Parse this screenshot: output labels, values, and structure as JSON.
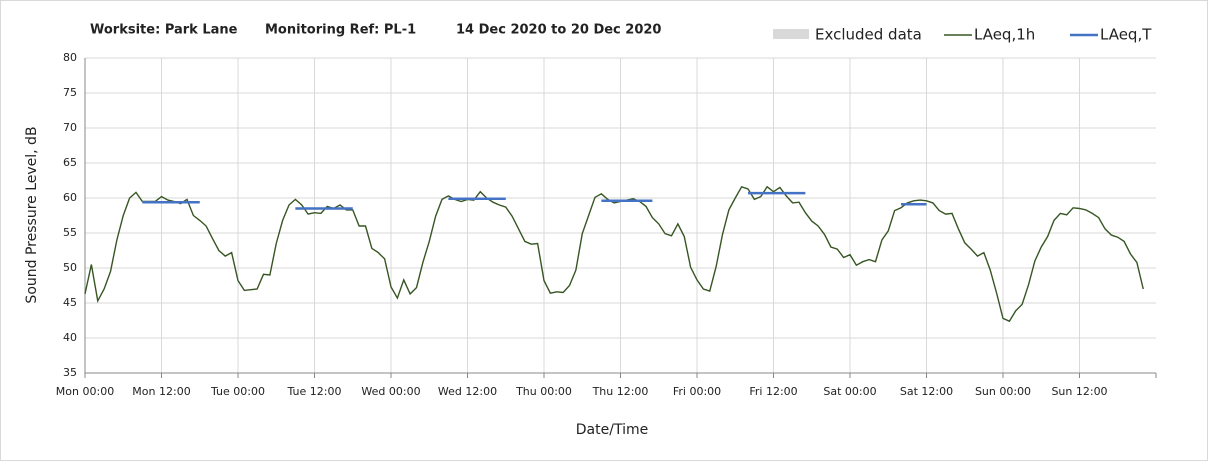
{
  "chart_data": {
    "type": "line",
    "title": [
      "Worksite: Park Lane",
      "Monitoring Ref: PL-1",
      "14 Dec 2020 to 20 Dec 2020"
    ],
    "x_label": "Date/Time",
    "y_label": "Sound Pressure Level, dB",
    "excluded": {
      "name": "Excluded data",
      "color": "#d9d9d9"
    },
    "x": [
      0,
      1,
      2,
      3,
      4,
      5,
      6,
      7,
      8,
      9,
      10,
      11,
      12,
      13,
      14,
      15,
      16,
      17,
      18,
      19,
      20,
      21,
      22,
      23,
      24,
      25,
      26,
      27,
      28,
      29,
      30,
      31,
      32,
      33,
      34,
      35,
      36,
      37,
      38,
      39,
      40,
      41,
      42,
      43,
      44,
      45,
      46,
      47,
      48,
      49,
      50,
      51,
      52,
      53,
      54,
      55,
      56,
      57,
      58,
      59,
      60,
      61,
      62,
      63,
      64,
      65,
      66,
      67,
      68,
      69,
      70,
      71,
      72,
      73,
      74,
      75,
      76,
      77,
      78,
      79,
      80,
      81,
      82,
      83,
      84,
      85,
      86,
      87,
      88,
      89,
      90,
      91,
      92,
      93,
      94,
      95,
      96,
      97,
      98,
      99,
      100,
      101,
      102,
      103,
      104,
      105,
      106,
      107,
      108,
      109,
      110,
      111,
      112,
      113,
      114,
      115,
      116,
      117,
      118,
      119,
      120,
      121,
      122,
      123,
      124,
      125,
      126,
      127,
      128,
      129,
      130,
      131,
      132,
      133,
      134,
      135,
      136,
      137,
      138,
      139,
      140,
      141,
      142,
      143,
      144,
      145,
      146,
      147,
      148,
      149,
      150,
      151,
      152,
      153,
      154,
      155,
      156,
      157,
      158,
      159,
      160,
      161,
      162,
      163,
      164,
      165,
      166
    ],
    "series": [
      {
        "name": "LAeq,1h",
        "color": "#375623",
        "values": [
          46.3,
          50.5,
          45.3,
          47,
          49.5,
          54,
          57.5,
          60,
          60.8,
          59.5,
          59.5,
          59.5,
          60.2,
          59.7,
          59.5,
          59.2,
          59.8,
          57.5,
          56.8,
          56,
          54.2,
          52.5,
          51.7,
          52.2,
          48.2,
          46.8,
          46.9,
          47,
          49.1,
          49,
          53.5,
          56.8,
          59,
          59.8,
          59,
          57.7,
          57.9,
          57.8,
          58.8,
          58.5,
          59,
          58.3,
          58.3,
          56,
          56,
          52.8,
          52.2,
          51.3,
          47.3,
          45.7,
          48.3,
          46.3,
          47.2,
          50.8,
          53.8,
          57.4,
          59.8,
          60.3,
          59.8,
          59.5,
          59.8,
          59.7,
          60.9,
          60,
          59.4,
          59,
          58.7,
          57.4,
          55.6,
          53.8,
          53.4,
          53.5,
          48.2,
          46.4,
          46.6,
          46.5,
          47.5,
          49.7,
          54.9,
          57.5,
          60.1,
          60.6,
          59.8,
          59.3,
          59.5,
          59.7,
          59.9,
          59.5,
          58.8,
          57.2,
          56.3,
          54.9,
          54.6,
          56.3,
          54.5,
          50.1,
          48.3,
          47,
          46.7,
          50.2,
          54.8,
          58.3,
          60,
          61.6,
          61.3,
          59.8,
          60.2,
          61.6,
          60.9,
          61.5,
          60.3,
          59.3,
          59.4,
          57.9,
          56.7,
          56,
          54.8,
          53,
          52.7,
          51.5,
          51.9,
          50.4,
          50.9,
          51.2,
          50.9,
          54,
          55.3,
          58.2,
          58.6,
          59.3,
          59.6,
          59.7,
          59.6,
          59.3,
          58.2,
          57.7,
          57.8,
          55.6,
          53.6,
          52.7,
          51.7,
          52.2,
          49.7,
          46.4,
          42.8,
          42.4,
          43.9,
          44.8,
          47.6,
          51,
          53,
          54.5,
          56.8,
          57.8,
          57.6,
          58.6,
          58.5,
          58.3,
          57.8,
          57.2,
          55.6,
          54.7,
          54.4,
          53.8,
          52,
          50.8,
          47
        ]
      },
      {
        "name": "LAeq,T",
        "color": "#4472c4",
        "values": [
          null,
          null,
          null,
          null,
          null,
          null,
          null,
          null,
          null,
          59.4,
          59.4,
          59.4,
          59.4,
          59.4,
          59.4,
          59.4,
          59.4,
          59.4,
          59.4,
          null,
          null,
          null,
          null,
          null,
          null,
          null,
          null,
          null,
          null,
          null,
          null,
          null,
          null,
          58.5,
          58.5,
          58.5,
          58.5,
          58.5,
          58.5,
          58.5,
          58.5,
          58.5,
          58.5,
          null,
          null,
          null,
          null,
          null,
          null,
          null,
          null,
          null,
          null,
          null,
          null,
          null,
          null,
          59.9,
          59.9,
          59.9,
          59.9,
          59.9,
          59.9,
          59.9,
          59.9,
          59.9,
          59.9,
          null,
          null,
          null,
          null,
          null,
          null,
          null,
          null,
          null,
          null,
          null,
          null,
          null,
          null,
          59.6,
          59.6,
          59.6,
          59.6,
          59.6,
          59.6,
          59.6,
          59.6,
          59.6,
          null,
          null,
          null,
          null,
          null,
          null,
          null,
          null,
          null,
          null,
          null,
          null,
          null,
          null,
          60.7,
          60.7,
          60.7,
          60.7,
          60.7,
          60.7,
          60.7,
          60.7,
          60.7,
          60.7,
          null,
          null,
          null,
          null,
          null,
          null,
          null,
          null,
          null,
          null,
          null,
          null,
          null,
          null,
          59.1,
          59.1,
          59.1,
          59.1,
          59.1,
          null,
          null,
          null,
          null,
          null,
          null,
          null,
          null,
          null,
          null,
          null,
          null,
          null,
          null,
          null,
          null,
          null,
          null,
          null,
          null,
          null,
          null,
          null,
          null,
          null,
          null,
          null,
          null,
          null,
          null,
          null,
          null,
          null,
          null
        ]
      }
    ],
    "xlim": [
      0,
      168
    ],
    "xticks": [
      {
        "value": 0,
        "label": "Mon 00:00"
      },
      {
        "value": 12,
        "label": "Mon 12:00"
      },
      {
        "value": 24,
        "label": "Tue 00:00"
      },
      {
        "value": 36,
        "label": "Tue 12:00"
      },
      {
        "value": 48,
        "label": "Wed 00:00"
      },
      {
        "value": 60,
        "label": "Wed 12:00"
      },
      {
        "value": 72,
        "label": "Thu 00:00"
      },
      {
        "value": 84,
        "label": "Thu 12:00"
      },
      {
        "value": 96,
        "label": "Fri 00:00"
      },
      {
        "value": 108,
        "label": "Fri 12:00"
      },
      {
        "value": 120,
        "label": "Sat 00:00"
      },
      {
        "value": 132,
        "label": "Sat 12:00"
      },
      {
        "value": 144,
        "label": "Sun 00:00"
      },
      {
        "value": 156,
        "label": "Sun 12:00"
      }
    ],
    "ylim": [
      35,
      80
    ],
    "yticks": [
      35,
      40,
      45,
      50,
      55,
      60,
      65,
      70,
      75,
      80
    ],
    "grid": true
  }
}
